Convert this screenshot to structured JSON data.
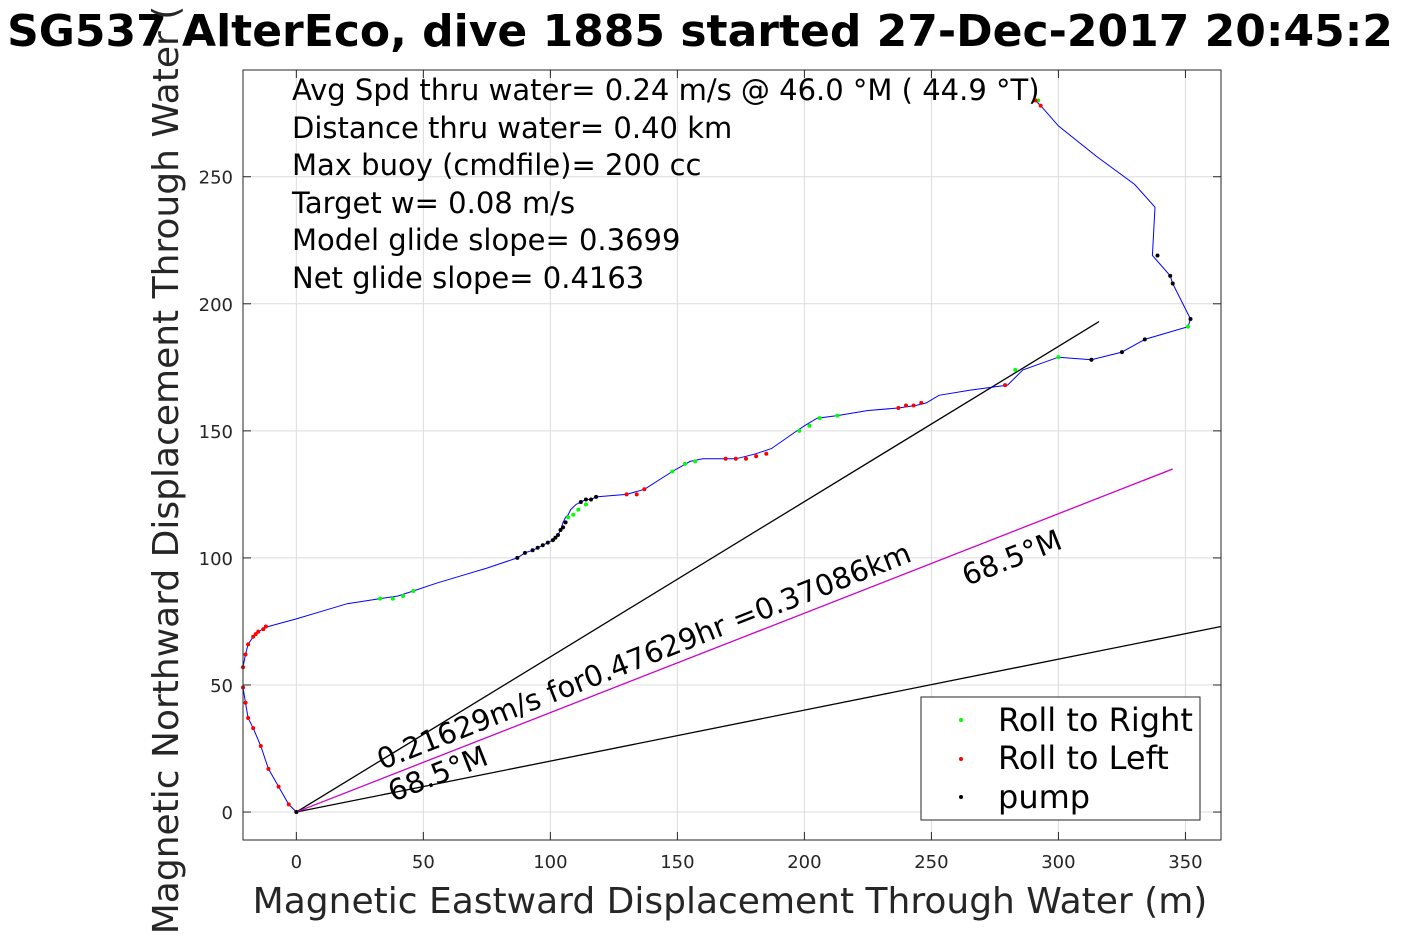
{
  "chart_data": {
    "type": "scatter",
    "title": "SG537 AlterEco, dive 1885 started 27-Dec-2017 20:45:2",
    "xlabel": "Magnetic Eastward Displacement Through Water (m)",
    "ylabel": "Magnetic Northward Displacement Through Water (",
    "xlim": [
      -21,
      364
    ],
    "ylim": [
      -11,
      292
    ],
    "xticks": [
      0,
      50,
      100,
      150,
      200,
      250,
      300,
      350
    ],
    "yticks": [
      0,
      50,
      100,
      150,
      200,
      250
    ],
    "grid": true,
    "annotations": [
      "Avg Spd thru water=  0.24 m/s @  46.0 °M ( 44.9 °T)",
      "Distance thru water=  0.40 km",
      "Max buoy (cmdfile)= 200 cc",
      "Target w= 0.08 m/s",
      "Model glide slope= 0.3699",
      "Net glide slope= 0.4163"
    ],
    "rotated_labels": {
      "current": "0.21629m/s for0.47629hr =0.37086km",
      "heading_left": "68.5°M",
      "heading_right": "68.5°M"
    },
    "legend": {
      "placement": "bottom-right",
      "entries": [
        {
          "name": "Roll to Right",
          "color": "#00ff00"
        },
        {
          "name": "Roll to Left",
          "color": "#ff0000"
        },
        {
          "name": "pump",
          "color": "#000000"
        }
      ]
    },
    "lines": [
      {
        "color": "#000000",
        "x": [
          0,
          316
        ],
        "y": [
          0,
          193
        ]
      },
      {
        "color": "#000000",
        "x": [
          0,
          364
        ],
        "y": [
          0,
          73
        ]
      },
      {
        "color": "#cc00cc",
        "x": [
          0,
          345
        ],
        "y": [
          0,
          135
        ]
      }
    ],
    "track": {
      "color": "#0000ff",
      "x": [
        0,
        -3,
        -7,
        -11,
        -14,
        -17,
        -19,
        -20,
        -21,
        -21,
        -20,
        -19,
        -17,
        -16,
        -15,
        -13,
        -12,
        -11,
        0,
        10,
        20,
        33,
        40,
        46,
        55,
        65,
        75,
        87,
        90,
        93,
        95,
        97,
        99,
        101,
        102,
        103,
        104,
        105,
        106,
        107,
        108,
        110,
        112,
        114,
        116,
        118,
        130,
        137,
        148,
        155,
        160,
        168,
        173,
        177,
        181,
        187,
        197,
        200,
        205,
        213,
        225,
        237,
        244,
        248,
        253,
        265,
        280,
        286,
        300,
        313,
        325,
        334,
        351,
        352,
        345,
        344,
        337,
        338,
        330,
        315,
        300,
        293,
        291
      ],
      "y": [
        0,
        3,
        10,
        17,
        26,
        33,
        37,
        43,
        49,
        57,
        62,
        66,
        69,
        70,
        71,
        72,
        73,
        73,
        76,
        79,
        82,
        84,
        85,
        87,
        90,
        93,
        96,
        100,
        102,
        103,
        104,
        105,
        106,
        107,
        108,
        109,
        111,
        114,
        116,
        117,
        119,
        121,
        122,
        123,
        123,
        124,
        125,
        127,
        134,
        138,
        139,
        139,
        139,
        140,
        141,
        143,
        150,
        152,
        155,
        156,
        158,
        159,
        160,
        161,
        164,
        166,
        168,
        174,
        179,
        178,
        181,
        186,
        191,
        194,
        208,
        211,
        219,
        238,
        247,
        258,
        270,
        278,
        280
      ]
    },
    "markers": {
      "roll_right": {
        "color": "#00ff00",
        "x": [
          33,
          38,
          42,
          46,
          107,
          109,
          111,
          114,
          148,
          153,
          157,
          198,
          202,
          206,
          213,
          283,
          300,
          351,
          292
        ],
        "y": [
          84,
          84,
          85,
          87,
          116,
          117,
          119,
          121,
          134,
          137,
          138,
          150,
          152,
          155,
          156,
          174,
          179,
          191,
          280
        ]
      },
      "roll_left": {
        "color": "#ff0000",
        "x": [
          0,
          -3,
          -7,
          -11,
          -14,
          -17,
          -19,
          -20,
          -21,
          -21,
          -20,
          -19,
          -17,
          -16,
          -15,
          -13,
          -12,
          130,
          134,
          137,
          169,
          173,
          177,
          181,
          185,
          237,
          240,
          243,
          246,
          279,
          291,
          293
        ],
        "y": [
          0,
          3,
          10,
          17,
          26,
          33,
          37,
          43,
          49,
          57,
          62,
          66,
          69,
          70,
          71,
          72,
          73,
          125,
          125,
          127,
          139,
          139,
          139,
          140,
          141,
          159,
          160,
          160,
          161,
          168,
          280,
          278
        ]
      },
      "pump": {
        "color": "#000000",
        "x": [
          87,
          90,
          93,
          95,
          97,
          99,
          101,
          102,
          103,
          104,
          105,
          106,
          112,
          114,
          116,
          118,
          313,
          325,
          334,
          339,
          344,
          345,
          352,
          0
        ],
        "y": [
          100,
          102,
          103,
          104,
          105,
          106,
          107,
          108,
          109,
          111,
          112,
          114,
          122,
          123,
          123,
          124,
          178,
          181,
          186,
          219,
          211,
          208,
          194,
          0
        ]
      }
    }
  }
}
